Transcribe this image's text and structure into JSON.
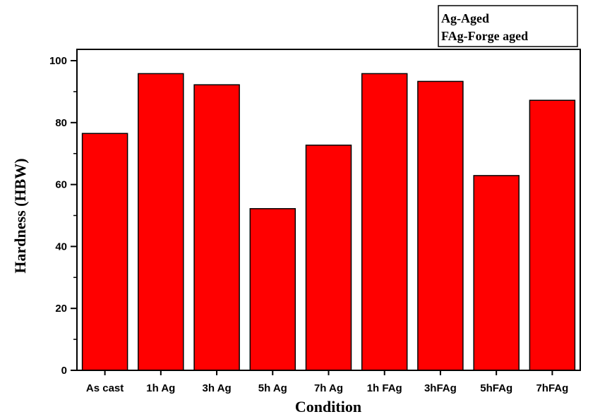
{
  "chart_data": {
    "type": "bar",
    "xlabel": "Condition",
    "ylabel": "Hardness (HBW)",
    "categories": [
      "As cast",
      "1h Ag",
      "3h Ag",
      "5h Ag",
      "7h Ag",
      "1h FAg",
      "3hFAg",
      "5hFAg",
      "7hFAg"
    ],
    "values": [
      76.5,
      95.8,
      92.2,
      52.2,
      72.7,
      95.8,
      93.3,
      62.9,
      87.2
    ],
    "ylim": [
      0,
      100
    ],
    "yticks": [
      0,
      20,
      40,
      60,
      80,
      100
    ],
    "grid": false,
    "legend_position": "top-right",
    "legend_lines": [
      "Ag-Aged",
      "FAg-Forge aged"
    ],
    "colors": {
      "bar_fill": "#ff0000",
      "bar_stroke": "#000000"
    }
  }
}
